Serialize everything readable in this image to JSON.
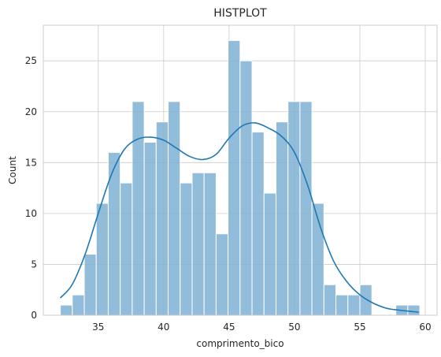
{
  "chart_data": {
    "type": "bar",
    "title": "HISTPLOT",
    "xlabel": "comprimento_bico",
    "ylabel": "Count",
    "xlim": [
      30.8,
      60.9
    ],
    "ylim": [
      0,
      28.5
    ],
    "xticks": [
      35,
      40,
      45,
      50,
      55,
      60
    ],
    "yticks": [
      0,
      5,
      10,
      15,
      20,
      25
    ],
    "grid": true,
    "bin_start": 32.1,
    "bin_width": 0.916,
    "counts": [
      1,
      2,
      6,
      11,
      16,
      13,
      21,
      17,
      19,
      21,
      13,
      14,
      14,
      8,
      27,
      25,
      18,
      12,
      19,
      21,
      21,
      11,
      3,
      2,
      2,
      3,
      0,
      0,
      1,
      1
    ],
    "kde": {
      "x": [
        32.1,
        33.0,
        34.0,
        35.0,
        36.0,
        37.0,
        38.0,
        39.0,
        40.0,
        41.0,
        42.0,
        43.0,
        44.0,
        45.0,
        46.0,
        47.0,
        48.0,
        49.0,
        50.0,
        51.0,
        52.0,
        53.0,
        54.0,
        55.0,
        56.0,
        57.0,
        58.0,
        59.5
      ],
      "y": [
        1.7,
        3.0,
        6.0,
        10.0,
        13.8,
        16.3,
        17.3,
        17.5,
        17.2,
        16.4,
        15.6,
        15.3,
        15.8,
        17.4,
        18.6,
        18.9,
        18.4,
        17.6,
        16.0,
        12.8,
        8.6,
        5.3,
        3.3,
        2.0,
        1.2,
        0.7,
        0.5,
        0.3
      ]
    }
  }
}
